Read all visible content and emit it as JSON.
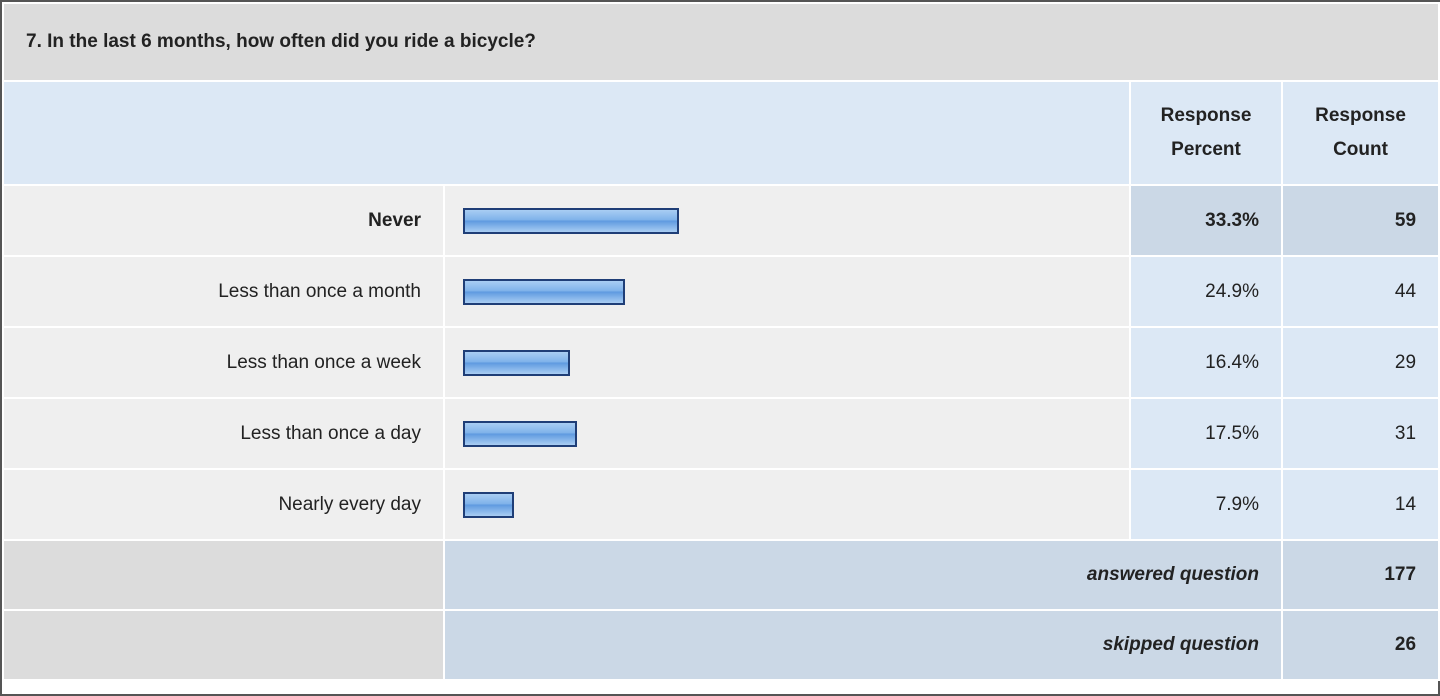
{
  "question": "7. In the last 6 months, how often did you ride a bicycle?",
  "headers": {
    "percent": "Response Percent",
    "count": "Response Count"
  },
  "rows": [
    {
      "label": "Never",
      "percent": "33.3%",
      "count": "59"
    },
    {
      "label": "Less than once a month",
      "percent": "24.9%",
      "count": "44"
    },
    {
      "label": "Less than once a week",
      "percent": "16.4%",
      "count": "29"
    },
    {
      "label": "Less than once a day",
      "percent": "17.5%",
      "count": "31"
    },
    {
      "label": "Nearly every day",
      "percent": "7.9%",
      "count": "14"
    }
  ],
  "answered": {
    "label": "answered question",
    "count": "177"
  },
  "skipped": {
    "label": "skipped question",
    "count": "26"
  }
}
